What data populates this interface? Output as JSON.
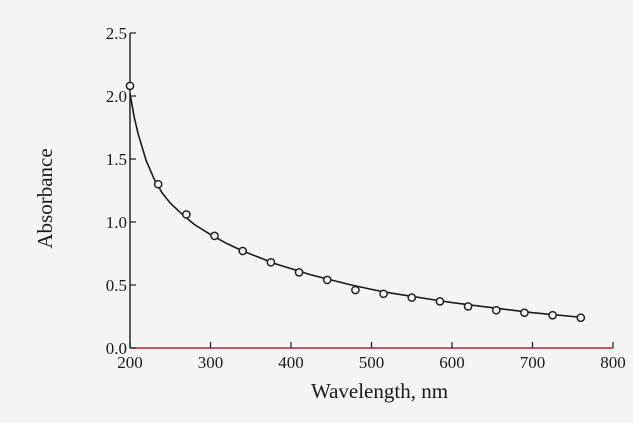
{
  "chart_data": {
    "type": "scatter",
    "title": "",
    "xlabel": "Wavelength, nm",
    "ylabel": "Absorbance",
    "xlim": [
      200,
      800
    ],
    "ylim": [
      0.0,
      2.5
    ],
    "x_ticks": [
      200,
      300,
      400,
      500,
      600,
      700,
      800
    ],
    "x_tick_labels": [
      "200",
      "300",
      "400",
      "500",
      "600",
      "700",
      "800"
    ],
    "y_ticks": [
      0.0,
      0.5,
      1.0,
      1.5,
      2.0,
      2.5
    ],
    "y_tick_labels": [
      "0.0",
      "0.5",
      "1.0",
      "1.5",
      "2.0",
      "2.5"
    ],
    "grid": false,
    "series": [
      {
        "style": "points",
        "marker": "open-circle",
        "x": [
          200,
          235,
          270,
          305,
          340,
          375,
          410,
          445,
          480,
          515,
          550,
          585,
          620,
          655,
          690,
          725,
          760
        ],
        "y": [
          2.08,
          1.3,
          1.06,
          0.89,
          0.77,
          0.68,
          0.6,
          0.54,
          0.46,
          0.43,
          0.4,
          0.37,
          0.33,
          0.3,
          0.28,
          0.26,
          0.24
        ]
      },
      {
        "style": "line",
        "x": [
          200,
          205,
          210,
          220,
          230,
          240,
          250,
          265,
          280,
          300,
          320,
          340,
          360,
          380,
          400,
          425,
          450,
          475,
          500,
          525,
          550,
          575,
          600,
          625,
          650,
          675,
          700,
          725,
          750,
          765
        ],
        "y": [
          2.02,
          1.84,
          1.7,
          1.49,
          1.34,
          1.23,
          1.15,
          1.06,
          0.98,
          0.9,
          0.83,
          0.77,
          0.72,
          0.67,
          0.63,
          0.58,
          0.54,
          0.5,
          0.465,
          0.435,
          0.41,
          0.385,
          0.36,
          0.34,
          0.32,
          0.3,
          0.28,
          0.265,
          0.25,
          0.24
        ]
      }
    ],
    "colors": {
      "axis": "#1a1a1a",
      "baseline": "#c0203a",
      "marker": "#222222",
      "curve": "#1a1a1a"
    }
  }
}
